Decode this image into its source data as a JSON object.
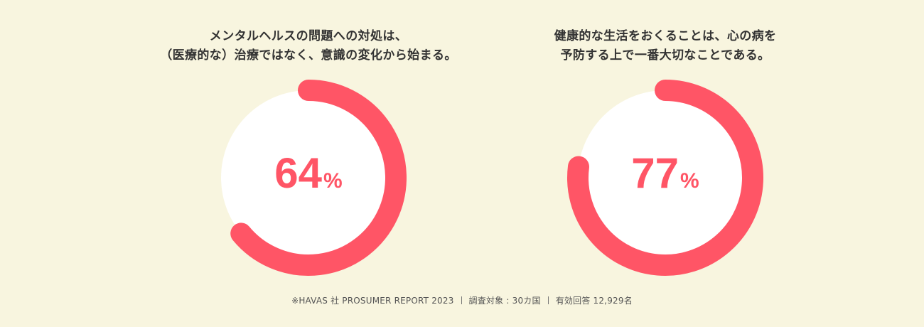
{
  "chart_data": [
    {
      "type": "pie",
      "title_lines": [
        "メンタルヘルスの問題への対処は、",
        "（医療的な）治療ではなく、意識の変化から始まる。"
      ],
      "value": 64,
      "value_text": "64",
      "unit": "%"
    },
    {
      "type": "pie",
      "title_lines": [
        "健康的な生活をおくることは、心の病を",
        "予防する上で一番大切なことである。"
      ],
      "value": 77,
      "value_text": "77",
      "unit": "%"
    }
  ],
  "colors": {
    "background": "#f8f5df",
    "track": "#ffffff",
    "accent": "#ff5566",
    "text": "#333333"
  },
  "footer": {
    "source": "※HAVAS 社  PROSUMER REPORT 2023",
    "scope": "調査対象 : 30カ国",
    "responses": "有効回答 12,929名"
  }
}
